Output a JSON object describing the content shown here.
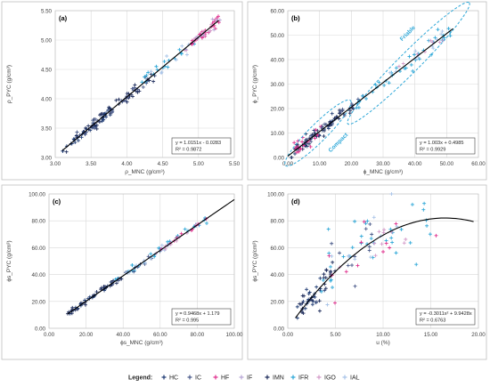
{
  "legend": {
    "title": "Legend:",
    "entries": [
      {
        "name": "HC",
        "color": "#1f3b73",
        "marker": "+"
      },
      {
        "name": "IC",
        "color": "#4a5a8a",
        "marker": "+"
      },
      {
        "name": "HF",
        "color": "#e0338f",
        "marker": "+"
      },
      {
        "name": "IF",
        "color": "#b8a7d6",
        "marker": "+"
      },
      {
        "name": "IMN",
        "color": "#1f2d5c",
        "marker": "+"
      },
      {
        "name": "IFR",
        "color": "#2fa8d8",
        "marker": "+"
      },
      {
        "name": "IGO",
        "color": "#d49bc9",
        "marker": "+"
      },
      {
        "name": "IAL",
        "color": "#a9c4e8",
        "marker": "+"
      }
    ]
  },
  "chart_data": [
    {
      "type": "scatter",
      "panel_label": "(a)",
      "xlabel": "ρ_MNC (g/cm³)",
      "ylabel": "ρ_PYC (g/cm³)",
      "xlim": [
        3.0,
        5.5
      ],
      "ylim": [
        3.0,
        5.5
      ],
      "xticks": [
        3.0,
        3.5,
        4.0,
        4.5,
        5.0,
        5.5
      ],
      "yticks": [
        3.0,
        3.5,
        4.0,
        4.5,
        5.0,
        5.5
      ],
      "tick_decimals": 2,
      "grid": true,
      "fit": {
        "kind": "linear",
        "a": 1.0151,
        "b": -0.0283,
        "x_range": [
          3.1,
          5.28
        ]
      },
      "equation": [
        "y = 1.0151x - 0.0283",
        "R² = 0.9872"
      ],
      "clusters": [
        {
          "series": "HC",
          "x_range": [
            3.1,
            3.8
          ],
          "n": 40,
          "noise": 0.04,
          "fit_a": 1.0151,
          "fit_b": -0.0283
        },
        {
          "series": "IMN",
          "x_range": [
            3.15,
            4.4
          ],
          "n": 45,
          "noise": 0.05,
          "fit_a": 1.0151,
          "fit_b": -0.0283
        },
        {
          "series": "IC",
          "x_range": [
            3.3,
            4.3
          ],
          "n": 25,
          "noise": 0.05,
          "fit_a": 1.0151,
          "fit_b": -0.0283
        },
        {
          "series": "IFR",
          "x_range": [
            4.2,
            5.0
          ],
          "n": 20,
          "noise": 0.06,
          "fit_a": 1.0151,
          "fit_b": -0.0283
        },
        {
          "series": "IAL",
          "x_range": [
            4.3,
            4.9
          ],
          "n": 8,
          "noise": 0.06,
          "fit_a": 1.0151,
          "fit_b": -0.0283
        },
        {
          "series": "HF",
          "x_range": [
            4.9,
            5.3
          ],
          "n": 30,
          "noise": 0.04,
          "fit_a": 1.0151,
          "fit_b": -0.0283
        },
        {
          "series": "IGO",
          "x_range": [
            4.8,
            5.25
          ],
          "n": 12,
          "noise": 0.05,
          "fit_a": 1.0151,
          "fit_b": -0.0283
        },
        {
          "series": "IF",
          "x_range": [
            4.9,
            5.3
          ],
          "n": 8,
          "noise": 0.05,
          "fit_a": 1.0151,
          "fit_b": -0.0283
        }
      ],
      "ellipses": []
    },
    {
      "type": "scatter",
      "panel_label": "(b)",
      "xlabel": "ϕ_MNC (g/cm³)",
      "ylabel": "ϕ_PYC (g/cm³)",
      "xlim": [
        0,
        60
      ],
      "ylim": [
        0,
        60
      ],
      "xticks": [
        0,
        10,
        20,
        30,
        40,
        50,
        60
      ],
      "yticks": [
        0,
        10,
        20,
        30,
        40,
        50,
        60
      ],
      "tick_decimals": 2,
      "grid": true,
      "fit": {
        "kind": "linear",
        "a": 1.003,
        "b": 0.4985,
        "x_range": [
          0,
          52
        ]
      },
      "equation": [
        "y = 1.003x + 0.4985",
        "R² = 0.9929"
      ],
      "clusters": [
        {
          "series": "HC",
          "x_range": [
            1,
            15
          ],
          "n": 30,
          "noise": 1.2,
          "fit_a": 1.003,
          "fit_b": 0.4985
        },
        {
          "series": "IMN",
          "x_range": [
            1,
            22
          ],
          "n": 40,
          "noise": 1.3,
          "fit_a": 1.003,
          "fit_b": 0.4985
        },
        {
          "series": "HF",
          "x_range": [
            2,
            12
          ],
          "n": 20,
          "noise": 1.3,
          "fit_a": 1.003,
          "fit_b": 0.4985
        },
        {
          "series": "IC",
          "x_range": [
            5,
            25
          ],
          "n": 15,
          "noise": 1.4,
          "fit_a": 1.003,
          "fit_b": 0.4985
        },
        {
          "series": "IFR",
          "x_range": [
            20,
            52
          ],
          "n": 40,
          "noise": 1.6,
          "fit_a": 1.003,
          "fit_b": 0.4985
        },
        {
          "series": "IAL",
          "x_range": [
            30,
            50
          ],
          "n": 10,
          "noise": 1.6,
          "fit_a": 1.003,
          "fit_b": 0.4985
        },
        {
          "series": "IGO",
          "x_range": [
            35,
            50
          ],
          "n": 8,
          "noise": 1.6,
          "fit_a": 1.003,
          "fit_b": 0.4985
        }
      ],
      "ellipses": [
        {
          "label": "Compact",
          "cx": 9.5,
          "cy": 10.0,
          "rx": 14.5,
          "ry": 3.6,
          "angle_deg": 45
        },
        {
          "label": "Friable",
          "cx": 38.0,
          "cy": 38.5,
          "rx": 27.0,
          "ry": 4.2,
          "angle_deg": 45
        }
      ]
    },
    {
      "type": "scatter",
      "panel_label": "(c)",
      "xlabel": "ϕs_MNC (g/cm³)",
      "ylabel": "ϕs_PYC (g/cm³)",
      "xlim": [
        0,
        100
      ],
      "ylim": [
        0,
        100
      ],
      "xticks": [
        0,
        20,
        40,
        60,
        80,
        100
      ],
      "yticks": [
        0,
        20,
        40,
        60,
        80,
        100
      ],
      "tick_decimals": 2,
      "grid": true,
      "fit": {
        "kind": "linear",
        "a": 0.9468,
        "b": 1.179,
        "x_range": [
          10,
          100
        ]
      },
      "equation": [
        "y = 0.9468x + 1.179",
        "R² = 0.995"
      ],
      "clusters": [
        {
          "series": "HC",
          "x_range": [
            10,
            35
          ],
          "n": 25,
          "noise": 1.0,
          "fit_a": 0.9468,
          "fit_b": 1.179
        },
        {
          "series": "IMN",
          "x_range": [
            10,
            40
          ],
          "n": 25,
          "noise": 1.0,
          "fit_a": 0.9468,
          "fit_b": 1.179
        },
        {
          "series": "IFR",
          "x_range": [
            35,
            88
          ],
          "n": 35,
          "noise": 1.4,
          "fit_a": 0.9468,
          "fit_b": 1.179
        },
        {
          "series": "IC",
          "x_range": [
            30,
            70
          ],
          "n": 15,
          "noise": 1.3,
          "fit_a": 0.9468,
          "fit_b": 1.179
        },
        {
          "series": "IAL",
          "x_range": [
            40,
            70
          ],
          "n": 12,
          "noise": 1.5,
          "fit_a": 0.9468,
          "fit_b": 1.179
        },
        {
          "series": "HF",
          "x_range": [
            60,
            85
          ],
          "n": 10,
          "noise": 1.3,
          "fit_a": 0.9468,
          "fit_b": 1.179
        },
        {
          "series": "IGO",
          "x_range": [
            55,
            85
          ],
          "n": 10,
          "noise": 1.4,
          "fit_a": 0.9468,
          "fit_b": 1.179
        }
      ],
      "ellipses": []
    },
    {
      "type": "scatter",
      "panel_label": "(d)",
      "xlabel": "u (%)",
      "ylabel": "ϕs_PYC (g/cm³)",
      "xlim": [
        0,
        20
      ],
      "ylim": [
        0,
        100
      ],
      "xticks": [
        0,
        5,
        10,
        15,
        20
      ],
      "yticks": [
        0,
        20,
        40,
        60,
        80,
        100
      ],
      "tick_decimals": 2,
      "grid": true,
      "fit": {
        "kind": "quadratic",
        "a": -0.3011,
        "b": 9.9428,
        "c": 0,
        "x_range": [
          0.8,
          19.5
        ]
      },
      "equation": [
        "y = -0.3011x² + 9.9428x",
        "R² = 0.6763"
      ],
      "clusters": [
        {
          "series": "HC",
          "x_range": [
            1,
            4
          ],
          "n": 25,
          "noise": 5,
          "fit_a": 0,
          "fit_b": 0
        },
        {
          "series": "IMN",
          "x_range": [
            1,
            5
          ],
          "n": 25,
          "noise": 6,
          "fit_a": 0,
          "fit_b": 0
        },
        {
          "series": "IFR",
          "x_range": [
            3,
            15
          ],
          "n": 35,
          "noise": 12,
          "fit_a": 0,
          "fit_b": 0
        },
        {
          "series": "IC",
          "x_range": [
            2,
            9
          ],
          "n": 12,
          "noise": 10,
          "fit_a": 0,
          "fit_b": 0
        },
        {
          "series": "HF",
          "x_range": [
            4,
            17
          ],
          "n": 12,
          "noise": 12,
          "fit_a": 0,
          "fit_b": 0
        },
        {
          "series": "IAL",
          "x_range": [
            4,
            12
          ],
          "n": 10,
          "noise": 12,
          "fit_a": 0,
          "fit_b": 0
        },
        {
          "series": "IGO",
          "x_range": [
            5,
            14
          ],
          "n": 10,
          "noise": 12,
          "fit_a": 0,
          "fit_b": 0
        }
      ],
      "ellipses": []
    }
  ]
}
